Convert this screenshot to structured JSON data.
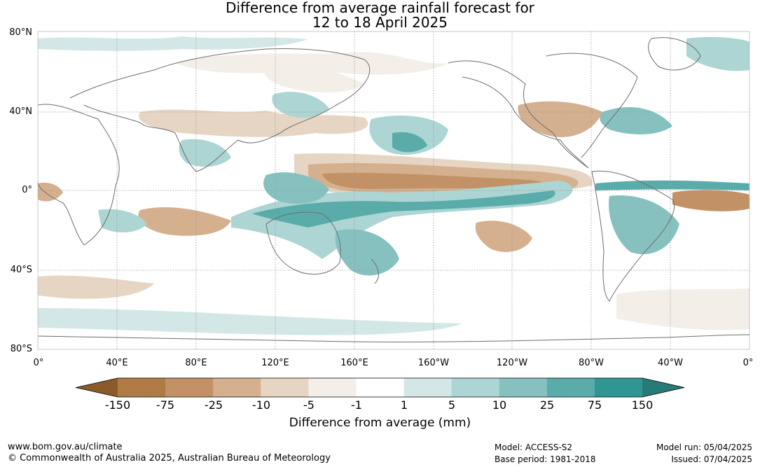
{
  "title": {
    "line1": "Difference from average rainfall forecast for",
    "line2": "12 to 18 April 2025"
  },
  "map": {
    "lat_labels": [
      "80°N",
      "40°N",
      "0°",
      "40°S",
      "80°S"
    ],
    "lon_labels": [
      "0°",
      "40°E",
      "80°E",
      "120°E",
      "160°E",
      "160°W",
      "120°W",
      "80°W",
      "40°W",
      "0°"
    ],
    "colors": {
      "dry_strong": "#c29266",
      "dry_moderate": "#d4b08f",
      "dry_light": "#e7d5c4",
      "dry_slight": "#f3eee8",
      "wet_slight": "#d2e7e6",
      "wet_light": "#acd5d3",
      "wet_moderate": "#86c1bf",
      "wet_strong": "#59aca9",
      "coast": "#6d6d6d",
      "grid": "#9a9a9a"
    }
  },
  "legend": {
    "ticks": [
      "-150",
      "-75",
      "-25",
      "-10",
      "-5",
      "-1",
      "1",
      "5",
      "10",
      "25",
      "75",
      "150"
    ],
    "colors": [
      "#8b5a2b",
      "#b07a45",
      "#c29266",
      "#d4b08f",
      "#e7d5c4",
      "#f3eee8",
      "#ffffff",
      "#d2e7e6",
      "#acd5d3",
      "#86c1bf",
      "#59aca9",
      "#2f9693",
      "#267a78"
    ],
    "label": "Difference from average (mm)"
  },
  "footer": {
    "website": "www.bom.gov.au/climate",
    "copyright": "© Commonwealth of Australia 2025, Australian Bureau of Meteorology",
    "model": "Model: ACCESS-S2",
    "base_period": "Base period: 1981-2018",
    "model_run": "Model run: 05/04/2025",
    "issued": "Issued: 07/04/2025"
  }
}
